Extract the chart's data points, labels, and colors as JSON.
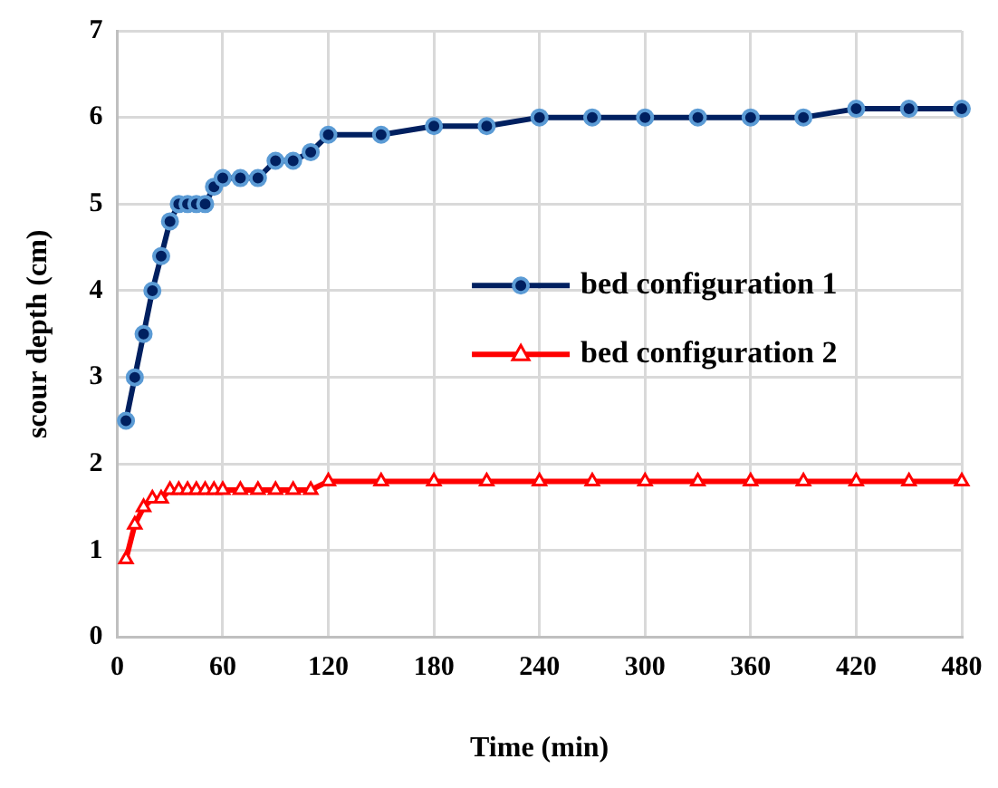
{
  "chart_data": {
    "type": "line",
    "xlabel": "Time (min)",
    "ylabel": "scour depth (cm)",
    "x": [
      5,
      10,
      15,
      20,
      25,
      30,
      35,
      40,
      45,
      50,
      55,
      60,
      70,
      80,
      90,
      100,
      110,
      120,
      150,
      180,
      210,
      240,
      270,
      300,
      330,
      360,
      390,
      420,
      450,
      480
    ],
    "series": [
      {
        "name": "bed configuration 1",
        "color": "#002060",
        "marker": "circle",
        "values": [
          2.5,
          3.0,
          3.5,
          4.0,
          4.4,
          4.8,
          5.0,
          5.0,
          5.0,
          5.0,
          5.2,
          5.3,
          5.3,
          5.3,
          5.5,
          5.5,
          5.6,
          5.8,
          5.8,
          5.9,
          5.9,
          6.0,
          6.0,
          6.0,
          6.0,
          6.0,
          6.0,
          6.1,
          6.1,
          6.1
        ]
      },
      {
        "name": "bed configuration 2",
        "color": "#ff0000",
        "marker": "triangle",
        "values": [
          0.9,
          1.3,
          1.5,
          1.6,
          1.6,
          1.7,
          1.7,
          1.7,
          1.7,
          1.7,
          1.7,
          1.7,
          1.7,
          1.7,
          1.7,
          1.7,
          1.7,
          1.8,
          1.8,
          1.8,
          1.8,
          1.8,
          1.8,
          1.8,
          1.8,
          1.8,
          1.8,
          1.8,
          1.8,
          1.8
        ]
      }
    ],
    "xlim": [
      0,
      480
    ],
    "xticks": [
      0,
      60,
      120,
      180,
      240,
      300,
      360,
      420,
      480
    ],
    "ylim": [
      0,
      7
    ],
    "yticks": [
      0,
      1,
      2,
      3,
      4,
      5,
      6,
      7
    ],
    "grid": true,
    "legend": "right",
    "line_style": "solid"
  }
}
